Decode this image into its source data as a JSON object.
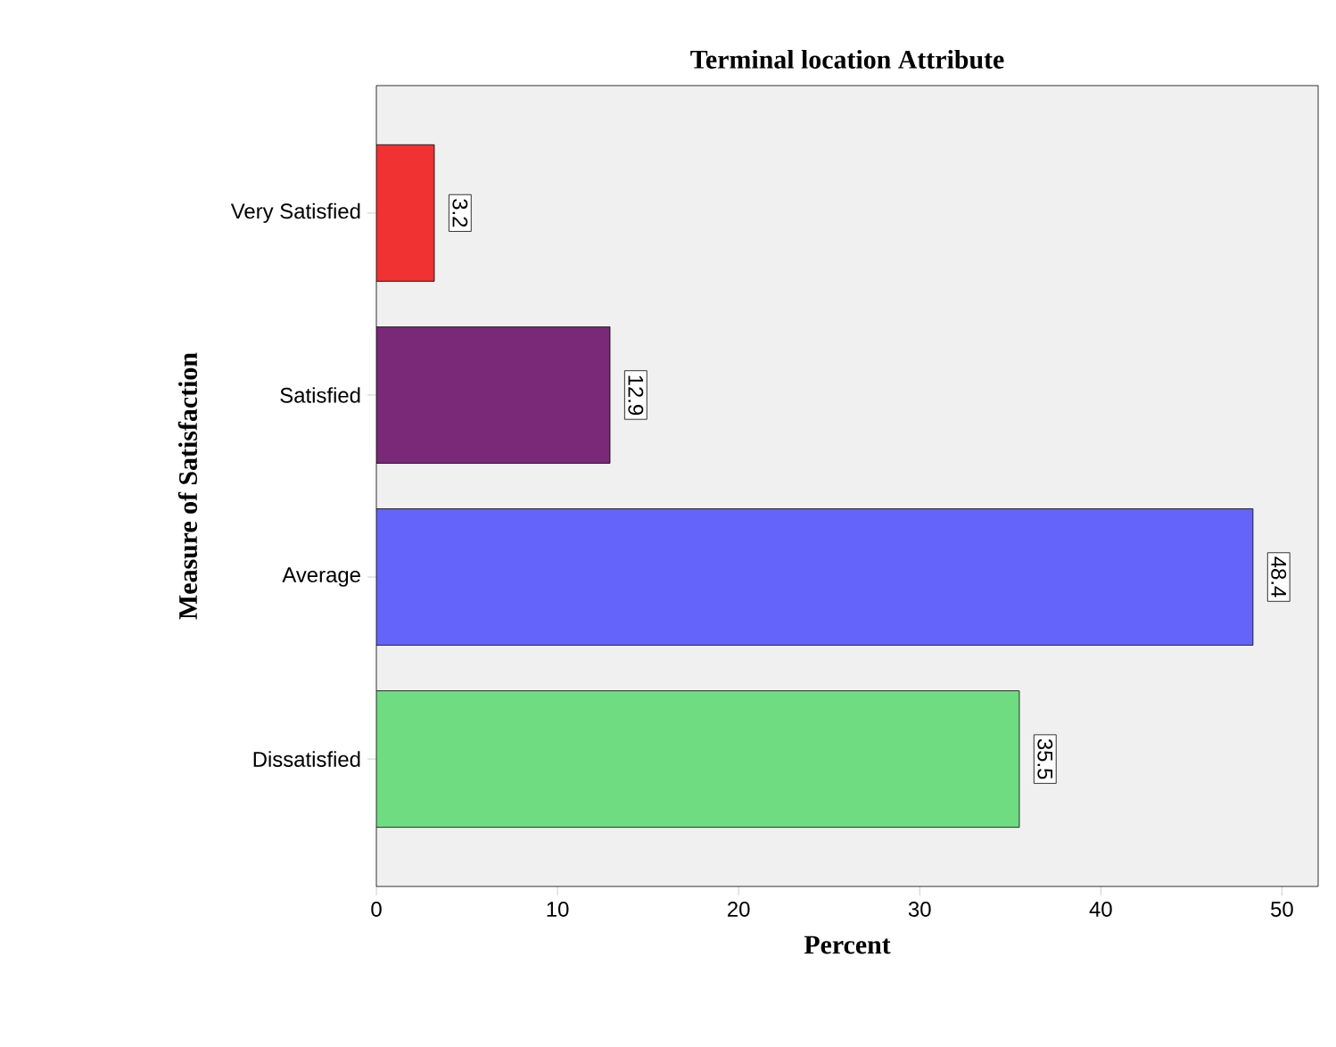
{
  "chart_data": {
    "type": "bar",
    "orientation": "horizontal",
    "title": "Terminal location Attribute",
    "xlabel": "Percent",
    "ylabel": "Measure of Satisfaction",
    "categories": [
      "Very Satisfied",
      "Satisfied",
      "Average",
      "Dissatisfied"
    ],
    "values": [
      3.2,
      12.9,
      48.4,
      35.5
    ],
    "colors": [
      "#f03232",
      "#7a2878",
      "#6464fa",
      "#6fdc82"
    ],
    "xlim": [
      0,
      52
    ],
    "xticks": [
      0,
      10,
      20,
      30,
      40,
      50
    ],
    "data_labels": true
  }
}
